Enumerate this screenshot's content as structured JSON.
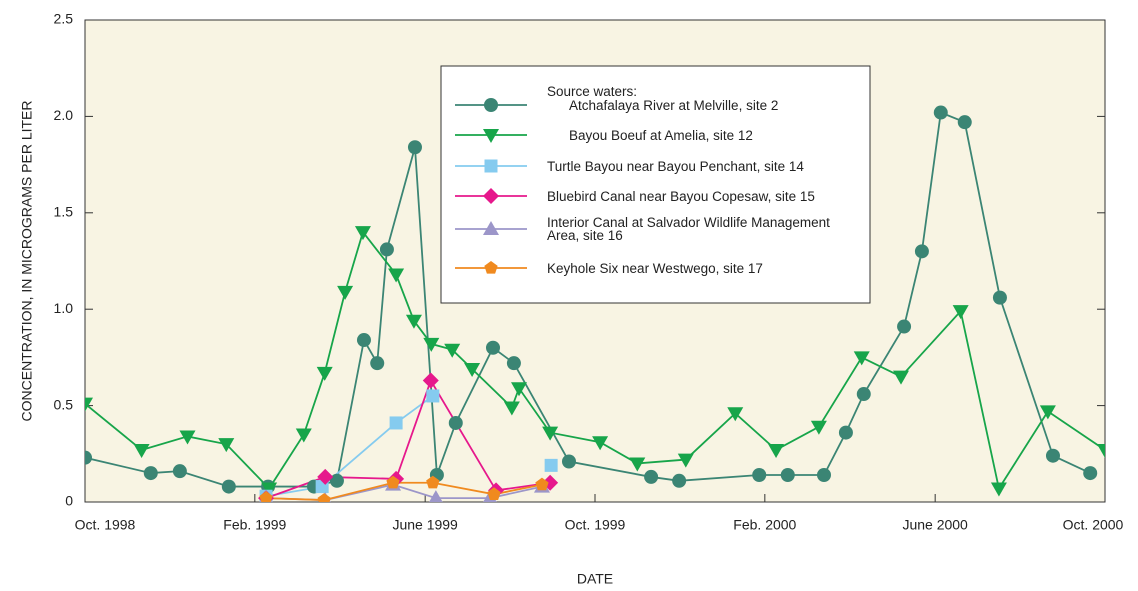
{
  "chart_data": {
    "type": "line",
    "ylabel": "CONCENTRATION, IN MICROGRAMS PER LITER",
    "xlabel": "DATE",
    "legend_title": "Source waters:",
    "xlim": [
      1998.75,
      2000.75
    ],
    "xticks": [
      {
        "value": 1998.75,
        "label": "Oct. 1998"
      },
      {
        "value": 1999.083,
        "label": "Feb. 1999"
      },
      {
        "value": 1999.417,
        "label": "June 1999"
      },
      {
        "value": 1999.75,
        "label": "Oct. 1999"
      },
      {
        "value": 2000.083,
        "label": "Feb. 2000"
      },
      {
        "value": 2000.417,
        "label": "June 2000"
      },
      {
        "value": 2000.75,
        "label": "Oct. 2000"
      }
    ],
    "ylim": [
      0,
      2.5
    ],
    "yticks": [
      0,
      0.5,
      {
        "value": 1,
        "label": "1.0"
      },
      1.5,
      {
        "value": 2,
        "label": "2.0"
      },
      2.5
    ],
    "background": "#f8f4e3",
    "series": [
      {
        "name": "Atchafalaya River at Melville, site 2",
        "color": "#3b8574",
        "marker": "circle",
        "x": [
          1998.75,
          1998.879,
          1998.936,
          1999.032,
          1999.109,
          1999.199,
          1999.244,
          1999.297,
          1999.323,
          1999.342,
          1999.397,
          1999.44,
          1999.477,
          1999.55,
          1999.591,
          1999.699,
          1999.86,
          1999.915,
          2000.072,
          2000.128,
          2000.199,
          2000.242,
          2000.277,
          2000.356,
          2000.391,
          2000.428,
          2000.475,
          2000.544,
          2000.648,
          2000.721
        ],
        "values": [
          0.23,
          0.15,
          0.16,
          0.08,
          0.08,
          0.08,
          0.11,
          0.84,
          0.72,
          1.31,
          1.84,
          0.14,
          0.41,
          0.8,
          0.72,
          0.21,
          0.13,
          0.11,
          0.14,
          0.14,
          0.14,
          0.36,
          0.56,
          0.91,
          1.3,
          2.02,
          1.97,
          1.06,
          0.24,
          0.15
        ]
      },
      {
        "name": "Bayou Boeuf at Amelia, site 12",
        "color": "#17a54a",
        "marker": "triangle-down",
        "x": [
          1998.75,
          1998.861,
          1998.951,
          1999.027,
          1999.111,
          1999.179,
          1999.22,
          1999.26,
          1999.295,
          1999.36,
          1999.395,
          1999.429,
          1999.47,
          1999.509,
          1999.587,
          1999.601,
          1999.662,
          1999.76,
          1999.833,
          1999.928,
          2000.025,
          2000.105,
          2000.189,
          2000.273,
          2000.35,
          2000.467,
          2000.542,
          2000.638,
          2000.75
        ],
        "values": [
          0.51,
          0.27,
          0.34,
          0.3,
          0.07,
          0.35,
          0.67,
          1.09,
          1.4,
          1.18,
          0.94,
          0.82,
          0.79,
          0.69,
          0.49,
          0.59,
          0.36,
          0.31,
          0.2,
          0.22,
          0.46,
          0.27,
          0.39,
          0.75,
          0.65,
          0.99,
          0.07,
          0.47,
          0.27
        ]
      },
      {
        "name": "Turtle Bayou near Bayou Penchant, site 14",
        "color": "#85cbef",
        "marker": "square",
        "x": [
          1999.105,
          1999.215,
          1999.36,
          1999.432,
          1999.548,
          1999.664
        ],
        "values": [
          0.03,
          0.08,
          0.41,
          0.55,
          null,
          0.19
        ]
      },
      {
        "name": "Bluebird Canal near Bayou Copesaw, site 15",
        "color": "#e6188c",
        "marker": "diamond",
        "x": [
          1999.105,
          1999.221,
          1999.36,
          1999.428,
          1999.556,
          1999.662
        ],
        "values": [
          0.02,
          0.13,
          0.12,
          0.63,
          0.06,
          0.1
        ]
      },
      {
        "name": "Interior Canal at Salvador Wildlife Management Area, site 16",
        "color": "#9c96c9",
        "marker": "triangle-up",
        "x": [
          1999.105,
          1999.221,
          1999.354,
          1999.438,
          1999.544,
          1999.646
        ],
        "values": [
          0.02,
          0.01,
          0.09,
          0.02,
          0.02,
          0.08
        ]
      },
      {
        "name": "Keyhole Six near Westwego, site 17",
        "color": "#f08a1f",
        "marker": "pentagon",
        "x": [
          1999.105,
          1999.219,
          1999.354,
          1999.432,
          1999.552,
          1999.646
        ],
        "values": [
          0.02,
          0.01,
          0.1,
          0.1,
          0.04,
          0.09
        ]
      }
    ]
  }
}
